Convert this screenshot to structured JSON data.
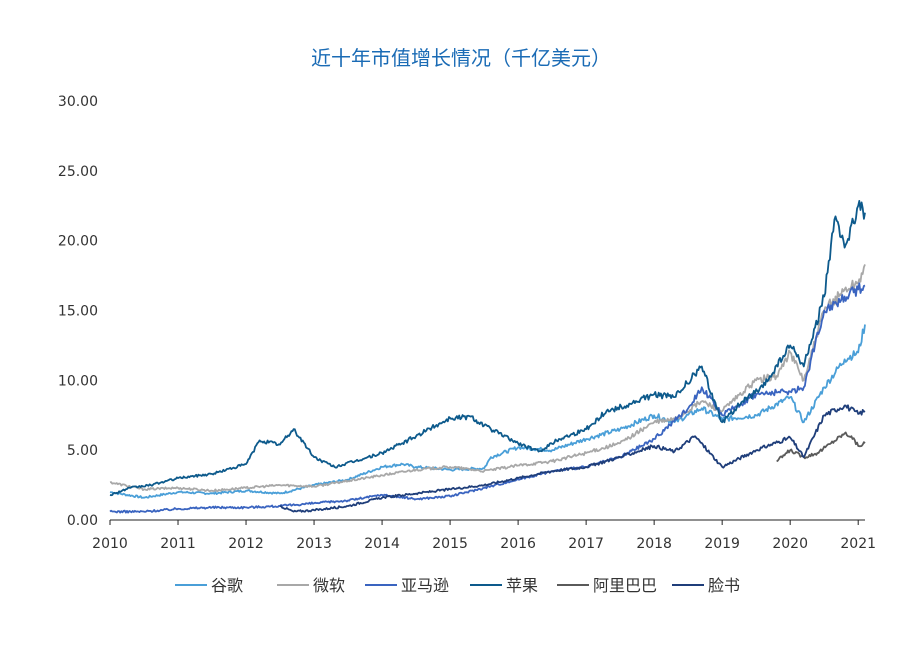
{
  "chart_data": {
    "type": "line",
    "title": "近十年市值增长情况（千亿美元）",
    "xlabel": "",
    "ylabel": "",
    "xlim": [
      2010,
      2021.1
    ],
    "ylim": [
      0,
      30
    ],
    "x_ticks": [
      "2010",
      "2011",
      "2012",
      "2013",
      "2014",
      "2015",
      "2016",
      "2017",
      "2018",
      "2019",
      "2020",
      "2021"
    ],
    "y_ticks": [
      "0.00",
      "5.00",
      "10.00",
      "15.00",
      "20.00",
      "25.00",
      "30.00"
    ],
    "grid": false,
    "legend_position": "bottom",
    "series": [
      {
        "name": "谷歌",
        "color": "#4a9fd8",
        "points": [
          [
            2010,
            2.0
          ],
          [
            2010.5,
            1.6
          ],
          [
            2011,
            2.0
          ],
          [
            2011.5,
            1.9
          ],
          [
            2012,
            2.1
          ],
          [
            2012.5,
            1.9
          ],
          [
            2013,
            2.5
          ],
          [
            2013.5,
            2.9
          ],
          [
            2014,
            3.8
          ],
          [
            2014.3,
            4.0
          ],
          [
            2014.5,
            3.8
          ],
          [
            2015,
            3.6
          ],
          [
            2015.5,
            3.7
          ],
          [
            2015.6,
            4.5
          ],
          [
            2016,
            5.2
          ],
          [
            2016.5,
            5.0
          ],
          [
            2017,
            5.8
          ],
          [
            2017.5,
            6.5
          ],
          [
            2018,
            7.5
          ],
          [
            2018.3,
            7.0
          ],
          [
            2018.7,
            8.0
          ],
          [
            2019,
            7.2
          ],
          [
            2019.5,
            7.5
          ],
          [
            2020,
            8.8
          ],
          [
            2020.2,
            7.0
          ],
          [
            2020.5,
            9.5
          ],
          [
            2020.8,
            11.5
          ],
          [
            2021,
            12.0
          ],
          [
            2021.1,
            14.0
          ]
        ]
      },
      {
        "name": "微软",
        "color": "#a8a8a8",
        "points": [
          [
            2010,
            2.7
          ],
          [
            2010.5,
            2.2
          ],
          [
            2011,
            2.3
          ],
          [
            2011.5,
            2.1
          ],
          [
            2012,
            2.3
          ],
          [
            2012.5,
            2.5
          ],
          [
            2013,
            2.4
          ],
          [
            2013.5,
            2.8
          ],
          [
            2014,
            3.2
          ],
          [
            2014.5,
            3.6
          ],
          [
            2015,
            3.8
          ],
          [
            2015.5,
            3.5
          ],
          [
            2016,
            3.9
          ],
          [
            2016.5,
            4.2
          ],
          [
            2017,
            4.8
          ],
          [
            2017.5,
            5.5
          ],
          [
            2018,
            7.0
          ],
          [
            2018.3,
            7.2
          ],
          [
            2018.7,
            8.5
          ],
          [
            2019,
            7.8
          ],
          [
            2019.5,
            10.0
          ],
          [
            2019.8,
            10.3
          ],
          [
            2020,
            12.0
          ],
          [
            2020.2,
            10.0
          ],
          [
            2020.5,
            15.0
          ],
          [
            2020.8,
            16.5
          ],
          [
            2021,
            17.0
          ],
          [
            2021.1,
            18.3
          ]
        ]
      },
      {
        "name": "亚马逊",
        "color": "#3a64c0",
        "points": [
          [
            2010,
            0.6
          ],
          [
            2010.5,
            0.6
          ],
          [
            2011,
            0.8
          ],
          [
            2011.5,
            0.9
          ],
          [
            2012,
            0.9
          ],
          [
            2012.5,
            1.0
          ],
          [
            2013,
            1.2
          ],
          [
            2013.5,
            1.4
          ],
          [
            2014,
            1.8
          ],
          [
            2014.5,
            1.5
          ],
          [
            2015,
            1.7
          ],
          [
            2015.5,
            2.3
          ],
          [
            2016,
            2.9
          ],
          [
            2016.5,
            3.5
          ],
          [
            2017,
            3.8
          ],
          [
            2017.5,
            4.5
          ],
          [
            2018,
            5.8
          ],
          [
            2018.5,
            8.0
          ],
          [
            2018.7,
            9.5
          ],
          [
            2019,
            7.5
          ],
          [
            2019.5,
            9.0
          ],
          [
            2020,
            9.2
          ],
          [
            2020.2,
            9.5
          ],
          [
            2020.5,
            15.0
          ],
          [
            2020.8,
            16.0
          ],
          [
            2021,
            16.5
          ],
          [
            2021.1,
            16.8
          ]
        ]
      },
      {
        "name": "苹果",
        "color": "#0d5a8c",
        "points": [
          [
            2010,
            1.8
          ],
          [
            2010.3,
            2.3
          ],
          [
            2010.6,
            2.5
          ],
          [
            2011,
            3.0
          ],
          [
            2011.5,
            3.3
          ],
          [
            2012,
            4.0
          ],
          [
            2012.2,
            5.7
          ],
          [
            2012.5,
            5.4
          ],
          [
            2012.7,
            6.5
          ],
          [
            2013,
            4.5
          ],
          [
            2013.3,
            3.8
          ],
          [
            2013.6,
            4.2
          ],
          [
            2014,
            4.8
          ],
          [
            2014.3,
            5.5
          ],
          [
            2014.5,
            6.0
          ],
          [
            2014.8,
            6.8
          ],
          [
            2015,
            7.3
          ],
          [
            2015.3,
            7.4
          ],
          [
            2015.6,
            6.5
          ],
          [
            2016,
            5.5
          ],
          [
            2016.3,
            4.9
          ],
          [
            2016.6,
            5.8
          ],
          [
            2017,
            6.5
          ],
          [
            2017.3,
            7.8
          ],
          [
            2017.6,
            8.2
          ],
          [
            2018,
            9.0
          ],
          [
            2018.3,
            8.8
          ],
          [
            2018.7,
            11.0
          ],
          [
            2019,
            7.0
          ],
          [
            2019.3,
            8.5
          ],
          [
            2019.6,
            9.5
          ],
          [
            2020,
            12.5
          ],
          [
            2020.2,
            11.0
          ],
          [
            2020.5,
            16.0
          ],
          [
            2020.65,
            21.5
          ],
          [
            2020.8,
            19.5
          ],
          [
            2021,
            22.5
          ],
          [
            2021.1,
            22.0
          ]
        ]
      },
      {
        "name": "阿里巴巴",
        "color": "#5a5a5a",
        "points": [
          [
            2019.8,
            4.2
          ],
          [
            2020,
            5.0
          ],
          [
            2020.2,
            4.5
          ],
          [
            2020.4,
            4.8
          ],
          [
            2020.6,
            5.5
          ],
          [
            2020.8,
            6.2
          ],
          [
            2020.9,
            6.0
          ],
          [
            2021,
            5.3
          ],
          [
            2021.1,
            5.5
          ]
        ]
      },
      {
        "name": "脸书",
        "color": "#1f3e7a",
        "points": [
          [
            2012.5,
            1.0
          ],
          [
            2012.7,
            0.6
          ],
          [
            2013,
            0.7
          ],
          [
            2013.5,
            1.0
          ],
          [
            2014,
            1.6
          ],
          [
            2014.5,
            1.9
          ],
          [
            2015,
            2.2
          ],
          [
            2015.5,
            2.5
          ],
          [
            2016,
            3.0
          ],
          [
            2016.5,
            3.5
          ],
          [
            2017,
            3.8
          ],
          [
            2017.5,
            4.5
          ],
          [
            2018,
            5.3
          ],
          [
            2018.3,
            4.9
          ],
          [
            2018.6,
            6.0
          ],
          [
            2019,
            3.8
          ],
          [
            2019.5,
            5.0
          ],
          [
            2020,
            5.9
          ],
          [
            2020.2,
            4.5
          ],
          [
            2020.5,
            7.5
          ],
          [
            2020.8,
            8.2
          ],
          [
            2021,
            7.6
          ],
          [
            2021.1,
            7.8
          ]
        ]
      }
    ]
  }
}
